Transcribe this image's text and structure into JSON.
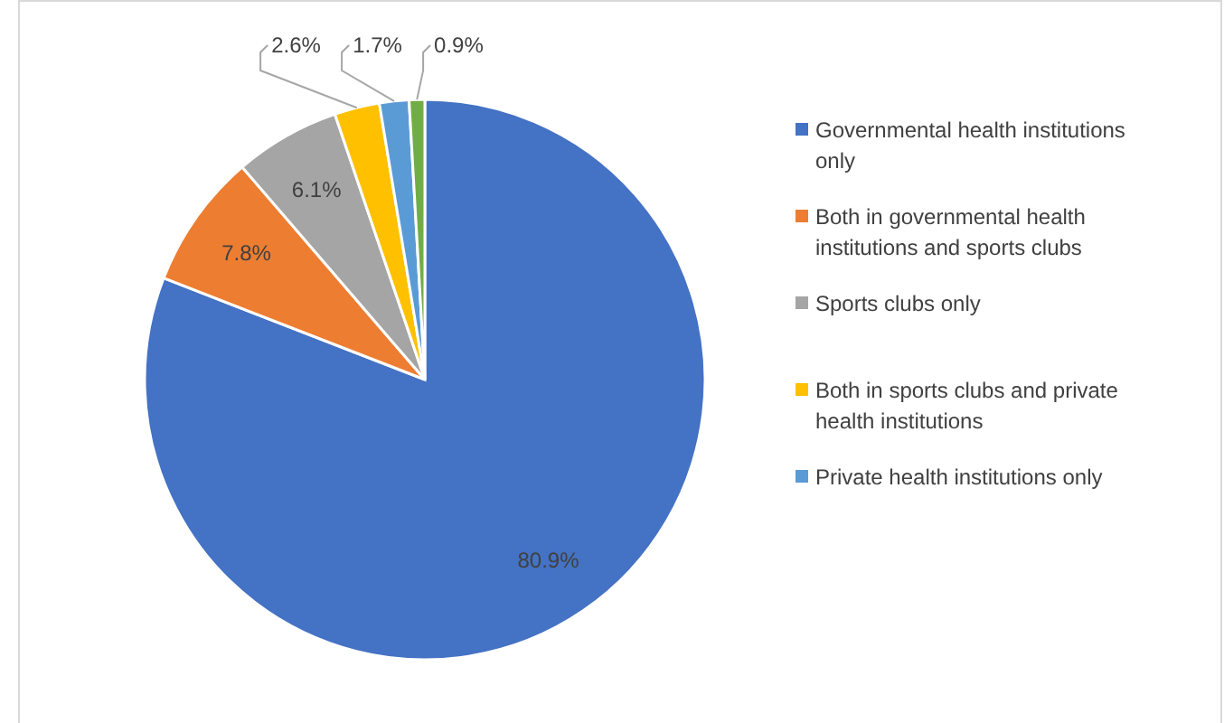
{
  "chart_data": {
    "type": "pie",
    "categories": [
      "Governmental health institutions only",
      "Both in governmental health institutions and sports clubs",
      "Sports clubs only",
      "Both in sports clubs and private health institutions",
      "Private health institutions only",
      null
    ],
    "values": [
      80.9,
      7.8,
      6.1,
      2.6,
      1.7,
      0.9
    ],
    "value_labels": [
      "80.9%",
      "7.8%",
      "6.1%",
      "2.6%",
      "1.7%",
      "0.9%"
    ],
    "colors": [
      "#4472c4",
      "#ed7d31",
      "#a5a5a5",
      "#ffc000",
      "#5b9bd5",
      "#70ad47"
    ],
    "legend": "right"
  }
}
